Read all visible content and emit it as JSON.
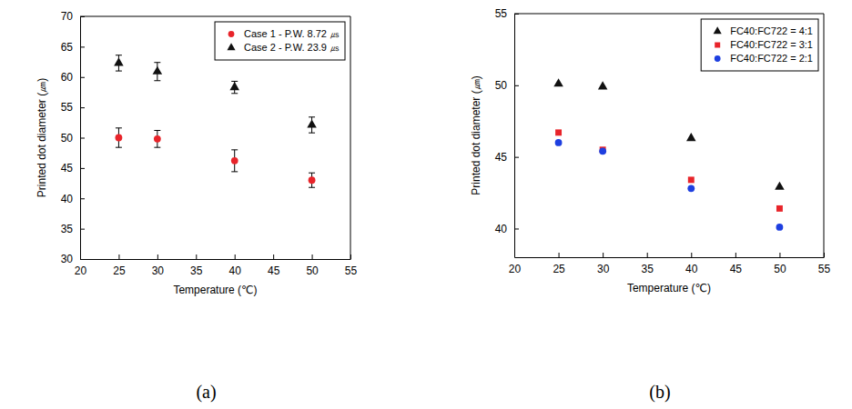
{
  "chart_data": [
    {
      "type": "scatter",
      "caption": "(a)",
      "x_label": "Temperature (℃)",
      "y_label": "Printed dot diameter (㎛)",
      "x": [
        25,
        30,
        40,
        50
      ],
      "xlim": [
        20,
        55
      ],
      "xticks": [
        20,
        25,
        30,
        35,
        40,
        45,
        50,
        55
      ],
      "ylim": [
        30,
        70
      ],
      "yticks": [
        30,
        35,
        40,
        45,
        50,
        55,
        60,
        65,
        70
      ],
      "grid": false,
      "legend": "upper right",
      "series": [
        {
          "name": "Case 1 - P.W. 8.72 ㎲",
          "color": "#e8242a",
          "marker": "circle",
          "values": [
            50.0,
            49.8,
            46.2,
            43.0
          ],
          "errors": [
            1.6,
            1.4,
            1.8,
            1.2
          ]
        },
        {
          "name": "Case 2 - P.W. 23.9 ㎲",
          "color": "#111111",
          "marker": "triangle",
          "values": [
            62.3,
            60.9,
            58.3,
            52.1
          ],
          "errors": [
            1.3,
            1.5,
            1.0,
            1.3
          ]
        }
      ]
    },
    {
      "type": "scatter",
      "caption": "(b)",
      "x_label": "Temperature (℃)",
      "y_label": "Printed dot diameter (㎛)",
      "x": [
        25,
        30,
        40,
        50
      ],
      "xlim": [
        20,
        55
      ],
      "xticks": [
        20,
        25,
        30,
        35,
        40,
        45,
        50,
        55
      ],
      "ylim": [
        38,
        55
      ],
      "yticks": [
        40,
        45,
        50,
        55
      ],
      "grid": false,
      "legend": "upper right",
      "series": [
        {
          "name": "FC40:FC722 = 4:1",
          "color": "#111111",
          "marker": "triangle",
          "values": [
            50.1,
            49.9,
            46.3,
            42.9
          ]
        },
        {
          "name": "FC40:FC722 = 3:1",
          "color": "#e8242a",
          "marker": "square",
          "values": [
            46.7,
            45.5,
            43.4,
            41.4
          ]
        },
        {
          "name": "FC40:FC722 = 2:1",
          "color": "#1e3fe0",
          "marker": "circle",
          "values": [
            46.0,
            45.4,
            42.8,
            40.1
          ]
        }
      ]
    }
  ]
}
